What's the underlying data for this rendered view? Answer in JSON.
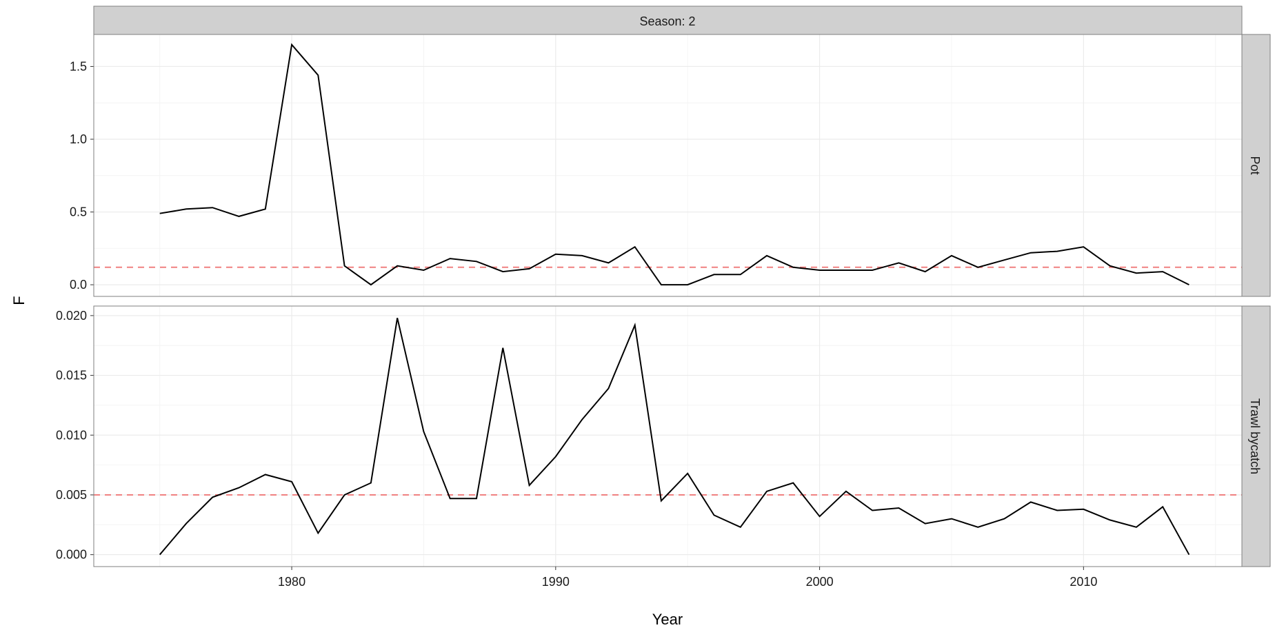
{
  "chart_data": {
    "type": "line",
    "facet_title": "Season: 2",
    "xlabel": "Year",
    "ylabel": "F",
    "xlim": [
      1972.5,
      2016
    ],
    "x_ticks": [
      1980,
      1990,
      2000,
      2010
    ],
    "x": [
      1975,
      1976,
      1977,
      1978,
      1979,
      1980,
      1981,
      1982,
      1983,
      1984,
      1985,
      1986,
      1987,
      1988,
      1989,
      1990,
      1991,
      1992,
      1993,
      1994,
      1995,
      1996,
      1997,
      1998,
      1999,
      2000,
      2001,
      2002,
      2003,
      2004,
      2005,
      2006,
      2007,
      2008,
      2009,
      2010,
      2011,
      2012,
      2013,
      2014
    ],
    "panels": [
      {
        "name": "Pot",
        "ylim": [
          -0.08,
          1.72
        ],
        "y_ticks": [
          0.0,
          0.5,
          1.0,
          1.5
        ],
        "y_tick_labels": [
          "0.0",
          "0.5",
          "1.0",
          "1.5"
        ],
        "reference_line": 0.12,
        "values": [
          0.49,
          0.52,
          0.53,
          0.47,
          0.52,
          1.65,
          1.44,
          0.13,
          0.0,
          0.13,
          0.1,
          0.18,
          0.16,
          0.09,
          0.11,
          0.21,
          0.2,
          0.15,
          0.26,
          0.0,
          0.0,
          0.07,
          0.07,
          0.2,
          0.12,
          0.1,
          0.1,
          0.1,
          0.15,
          0.09,
          0.2,
          0.12,
          0.17,
          0.22,
          0.23,
          0.26,
          0.13,
          0.08,
          0.09,
          0.0
        ]
      },
      {
        "name": "Trawl bycatch",
        "ylim": [
          -0.001,
          0.0208
        ],
        "y_ticks": [
          0.0,
          0.005,
          0.01,
          0.015,
          0.02
        ],
        "y_tick_labels": [
          "0.000",
          "0.005",
          "0.010",
          "0.015",
          "0.020"
        ],
        "reference_line": 0.005,
        "values": [
          0.0,
          0.0026,
          0.0048,
          0.0056,
          0.0067,
          0.0061,
          0.0018,
          0.005,
          0.006,
          0.0198,
          0.0103,
          0.0047,
          0.0047,
          0.0173,
          0.0058,
          0.0082,
          0.0113,
          0.0139,
          0.0192,
          0.0045,
          0.0068,
          0.0033,
          0.0023,
          0.0053,
          0.006,
          0.0032,
          0.0053,
          0.0037,
          0.0039,
          0.0026,
          0.003,
          0.0023,
          0.003,
          0.0044,
          0.0037,
          0.0038,
          0.0029,
          0.0023,
          0.004,
          0.0
        ]
      }
    ],
    "colors": {
      "line": "#000000",
      "reference_line": "#f08080",
      "strip_fill": "#d0d0d0",
      "strip_border": "#7f7f7f",
      "grid": "#ebebeb"
    },
    "grid": true,
    "legend": "none"
  }
}
